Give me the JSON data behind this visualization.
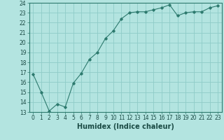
{
  "x": [
    0,
    1,
    2,
    3,
    4,
    5,
    6,
    7,
    8,
    9,
    10,
    11,
    12,
    13,
    14,
    15,
    16,
    17,
    18,
    19,
    20,
    21,
    22,
    23
  ],
  "y": [
    16.8,
    15.0,
    13.1,
    13.8,
    13.5,
    15.9,
    16.9,
    18.3,
    19.0,
    20.4,
    21.2,
    22.4,
    23.0,
    23.1,
    23.1,
    23.3,
    23.5,
    23.8,
    22.7,
    23.0,
    23.1,
    23.1,
    23.5,
    23.7
  ],
  "line_color": "#2d7a6e",
  "marker": "D",
  "marker_size": 1.8,
  "xlabel": "Humidex (Indice chaleur)",
  "xlabel_fontsize": 7,
  "xlim": [
    -0.5,
    23.5
  ],
  "ylim": [
    13,
    24
  ],
  "yticks": [
    13,
    14,
    15,
    16,
    17,
    18,
    19,
    20,
    21,
    22,
    23,
    24
  ],
  "xticks": [
    0,
    1,
    2,
    3,
    4,
    5,
    6,
    7,
    8,
    9,
    10,
    11,
    12,
    13,
    14,
    15,
    16,
    17,
    18,
    19,
    20,
    21,
    22,
    23
  ],
  "bg_color": "#b3e4e0",
  "grid_color": "#8fccc8",
  "tick_fontsize": 5.5,
  "linewidth": 0.8
}
